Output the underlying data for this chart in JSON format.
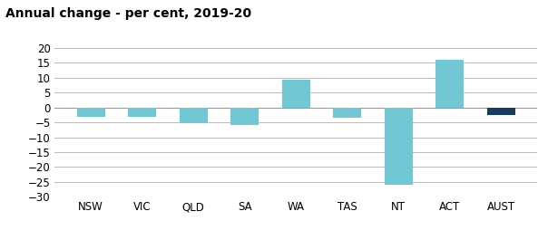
{
  "categories": [
    "NSW",
    "VIC",
    "QLD",
    "SA",
    "WA",
    "TAS",
    "NT",
    "ACT",
    "AUST"
  ],
  "values": [
    -3.0,
    -3.0,
    -5.2,
    -6.0,
    9.5,
    -3.5,
    -26.0,
    16.0,
    -2.5
  ],
  "colors": [
    "#72C7D4",
    "#72C7D4",
    "#72C7D4",
    "#72C7D4",
    "#72C7D4",
    "#72C7D4",
    "#72C7D4",
    "#72C7D4",
    "#1B3A5C"
  ],
  "title": "Annual change - per cent, 2019-20",
  "ylim": [
    -30,
    20
  ],
  "yticks": [
    -30,
    -25,
    -20,
    -15,
    -10,
    -5,
    0,
    5,
    10,
    15,
    20
  ],
  "title_fontsize": 10,
  "tick_fontsize": 8.5,
  "background_color": "#ffffff",
  "grid_color": "#bbbbbb",
  "bar_width": 0.55
}
